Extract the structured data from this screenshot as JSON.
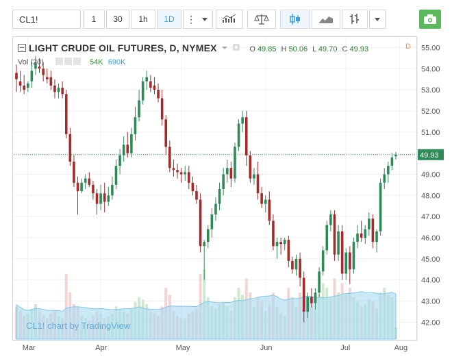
{
  "toolbar": {
    "symbol": "CL1!",
    "intervals": [
      "1",
      "30",
      "1h",
      "1D"
    ],
    "active_interval": "1D",
    "accent": "#3b9dd8",
    "camera_color": "#5cb85c"
  },
  "legend": {
    "title": "LIGHT CRUDE OIL FUTURES, D, NYMEX",
    "o_label": "O",
    "o": "49.85",
    "h_label": "H",
    "h": "50.06",
    "l_label": "L",
    "l": "49.70",
    "c_label": "C",
    "c": "49.93",
    "flag": "D"
  },
  "volume_legend": {
    "label": "Vol (20)",
    "v1": "54K",
    "v2": "690K"
  },
  "watermark": "CL1! chart by TradingView",
  "chart_data": {
    "type": "candlestick",
    "ylim": [
      41.2,
      55.5
    ],
    "yticks": [
      "55.00",
      "54.00",
      "53.00",
      "52.00",
      "51.00",
      "50.00",
      "49.00",
      "48.00",
      "47.00",
      "46.00",
      "45.00",
      "44.00",
      "43.00",
      "42.00"
    ],
    "xticks": [
      "Mar",
      "Apr",
      "May",
      "Jun",
      "Jul",
      "Aug"
    ],
    "last_price": "49.93",
    "colors": {
      "up": "#2e8b57",
      "down": "#a32b2b",
      "last_price": "#2e8b57",
      "volume_ma": "#7ec8ec"
    },
    "candles": [
      [
        53.8,
        54.2,
        52.9,
        53.5
      ],
      [
        53.4,
        53.9,
        52.9,
        53.2
      ],
      [
        53.2,
        53.7,
        52.8,
        53.0
      ],
      [
        53.1,
        53.4,
        52.9,
        53.3
      ],
      [
        53.4,
        54.3,
        53.1,
        53.9
      ],
      [
        54.0,
        54.6,
        53.7,
        54.3
      ],
      [
        54.1,
        54.5,
        53.8,
        54.0
      ],
      [
        54.0,
        54.3,
        53.4,
        53.7
      ],
      [
        53.6,
        54.0,
        53.3,
        53.5
      ],
      [
        53.6,
        53.9,
        53.0,
        53.2
      ],
      [
        53.2,
        53.5,
        52.6,
        52.9
      ],
      [
        52.9,
        53.3,
        52.6,
        53.1
      ],
      [
        53.1,
        53.4,
        52.6,
        52.8
      ],
      [
        52.8,
        53.0,
        50.7,
        50.9
      ],
      [
        50.9,
        51.2,
        49.4,
        49.6
      ],
      [
        49.6,
        49.9,
        48.4,
        48.6
      ],
      [
        48.6,
        48.9,
        47.1,
        48.2
      ],
      [
        48.2,
        48.8,
        48.1,
        48.6
      ],
      [
        48.6,
        49.0,
        48.3,
        48.8
      ],
      [
        48.8,
        49.1,
        48.4,
        48.5
      ],
      [
        48.5,
        48.7,
        47.8,
        48.1
      ],
      [
        48.1,
        48.3,
        47.1,
        47.6
      ],
      [
        47.6,
        48.5,
        47.3,
        48.1
      ],
      [
        48.1,
        48.6,
        47.2,
        47.7
      ],
      [
        47.7,
        48.4,
        47.5,
        48.0
      ],
      [
        48.0,
        48.9,
        47.8,
        48.5
      ],
      [
        48.5,
        49.7,
        48.3,
        49.4
      ],
      [
        49.4,
        50.2,
        49.0,
        49.9
      ],
      [
        49.9,
        50.8,
        49.6,
        50.4
      ],
      [
        50.4,
        51.0,
        49.8,
        50.0
      ],
      [
        50.0,
        51.2,
        49.8,
        50.9
      ],
      [
        50.9,
        52.2,
        50.6,
        51.7
      ],
      [
        51.7,
        53.0,
        51.5,
        52.5
      ],
      [
        52.5,
        53.6,
        52.3,
        53.4
      ],
      [
        53.4,
        53.9,
        53.0,
        53.6
      ],
      [
        53.4,
        53.7,
        52.9,
        53.1
      ],
      [
        53.2,
        53.6,
        52.8,
        53.0
      ],
      [
        53.0,
        53.3,
        52.4,
        52.6
      ],
      [
        52.6,
        53.0,
        51.3,
        51.6
      ],
      [
        51.6,
        51.8,
        49.9,
        50.3
      ],
      [
        50.3,
        50.6,
        49.1,
        49.3
      ],
      [
        49.3,
        49.7,
        48.9,
        49.2
      ],
      [
        49.2,
        49.5,
        48.8,
        49.1
      ],
      [
        49.1,
        49.3,
        48.6,
        49.0
      ],
      [
        49.0,
        49.4,
        48.7,
        49.1
      ],
      [
        49.1,
        49.4,
        48.3,
        48.6
      ],
      [
        48.6,
        48.9,
        48.0,
        48.2
      ],
      [
        48.2,
        48.5,
        47.6,
        47.8
      ],
      [
        47.8,
        48.1,
        45.3,
        45.6
      ],
      [
        45.6,
        45.9,
        44.0,
        45.8
      ],
      [
        45.8,
        46.6,
        45.5,
        46.4
      ],
      [
        46.4,
        47.4,
        46.0,
        47.1
      ],
      [
        47.1,
        47.9,
        46.8,
        47.6
      ],
      [
        47.6,
        48.6,
        47.3,
        48.3
      ],
      [
        48.3,
        49.3,
        48.0,
        49.0
      ],
      [
        49.0,
        49.7,
        48.6,
        49.3
      ],
      [
        49.3,
        49.6,
        48.4,
        48.8
      ],
      [
        48.8,
        50.5,
        48.6,
        50.3
      ],
      [
        50.3,
        51.6,
        50.1,
        51.4
      ],
      [
        51.4,
        52.0,
        51.0,
        51.7
      ],
      [
        51.7,
        52.0,
        49.4,
        49.9
      ],
      [
        49.9,
        50.1,
        48.6,
        48.8
      ],
      [
        48.8,
        49.3,
        48.5,
        49.0
      ],
      [
        49.0,
        49.6,
        47.8,
        48.1
      ],
      [
        48.1,
        48.4,
        47.4,
        47.6
      ],
      [
        47.6,
        48.0,
        47.2,
        47.8
      ],
      [
        47.8,
        48.2,
        46.6,
        46.8
      ],
      [
        46.8,
        47.1,
        45.4,
        45.6
      ],
      [
        45.6,
        46.0,
        45.0,
        45.8
      ],
      [
        45.8,
        46.0,
        45.2,
        45.7
      ],
      [
        45.7,
        46.0,
        45.4,
        45.9
      ],
      [
        45.9,
        46.1,
        44.6,
        44.9
      ],
      [
        44.9,
        45.1,
        44.3,
        44.5
      ],
      [
        44.5,
        45.2,
        44.2,
        45.0
      ],
      [
        45.0,
        45.3,
        43.7,
        44.1
      ],
      [
        44.1,
        44.4,
        42.0,
        42.5
      ],
      [
        42.5,
        43.4,
        42.2,
        43.2
      ],
      [
        43.2,
        43.6,
        42.7,
        42.9
      ],
      [
        42.9,
        43.6,
        42.6,
        43.4
      ],
      [
        43.4,
        44.6,
        43.2,
        44.4
      ],
      [
        44.4,
        45.6,
        44.2,
        45.4
      ],
      [
        45.4,
        46.8,
        45.2,
        46.6
      ],
      [
        46.6,
        47.3,
        46.3,
        47.1
      ],
      [
        47.1,
        47.3,
        44.9,
        45.2
      ],
      [
        45.2,
        46.6,
        44.9,
        46.3
      ],
      [
        46.3,
        46.6,
        44.0,
        44.3
      ],
      [
        44.3,
        45.5,
        44.0,
        45.3
      ],
      [
        45.3,
        45.6,
        43.8,
        44.5
      ],
      [
        44.5,
        46.0,
        44.3,
        45.8
      ],
      [
        45.8,
        46.6,
        45.5,
        46.2
      ],
      [
        46.2,
        46.8,
        45.8,
        46.0
      ],
      [
        46.0,
        46.6,
        45.7,
        46.4
      ],
      [
        46.4,
        47.2,
        46.1,
        46.9
      ],
      [
        46.9,
        47.1,
        45.5,
        45.8
      ],
      [
        45.8,
        46.4,
        45.3,
        46.3
      ],
      [
        46.3,
        48.8,
        46.1,
        48.6
      ],
      [
        48.6,
        49.3,
        48.3,
        49.0
      ],
      [
        49.0,
        49.6,
        48.6,
        49.4
      ],
      [
        49.4,
        50.0,
        49.2,
        49.8
      ],
      [
        49.85,
        50.06,
        49.7,
        49.93
      ]
    ],
    "volume": [
      14,
      12,
      10,
      11,
      13,
      15,
      12,
      10,
      9,
      11,
      12,
      10,
      9,
      28,
      20,
      15,
      14,
      10,
      9,
      8,
      10,
      12,
      11,
      9,
      10,
      11,
      14,
      13,
      12,
      11,
      13,
      16,
      18,
      17,
      15,
      12,
      11,
      10,
      14,
      22,
      19,
      12,
      10,
      9,
      9,
      11,
      12,
      13,
      28,
      30,
      18,
      14,
      13,
      15,
      16,
      14,
      12,
      18,
      22,
      19,
      26,
      20,
      14,
      18,
      16,
      12,
      15,
      20,
      14,
      11,
      10,
      22,
      18,
      14,
      20,
      26,
      18,
      14,
      13,
      19,
      24,
      22,
      18,
      26,
      20,
      24,
      19,
      22,
      18,
      16,
      14,
      15,
      17,
      16,
      13,
      20,
      22,
      19,
      18,
      5
    ]
  }
}
